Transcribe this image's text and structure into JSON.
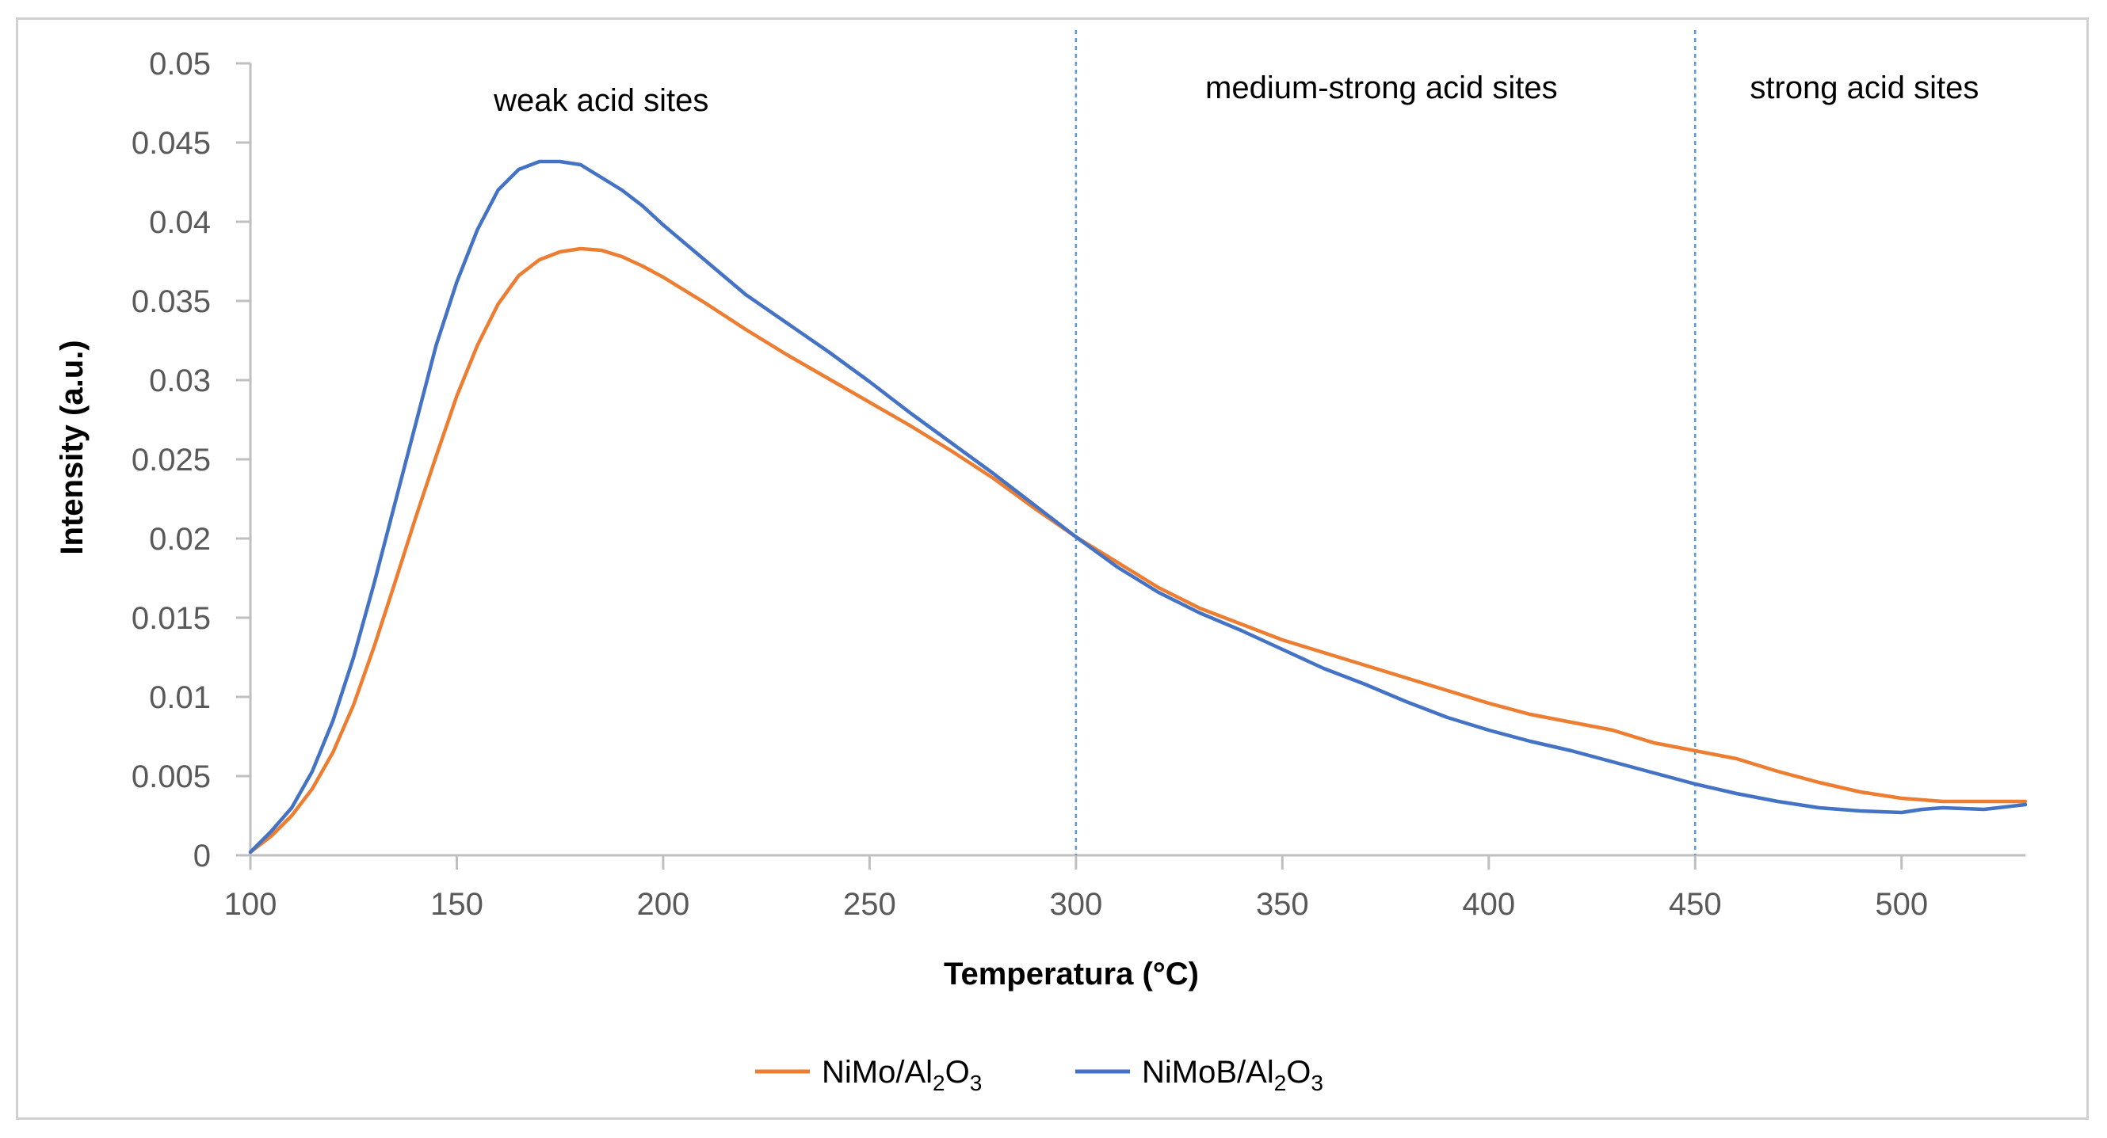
{
  "chart_data": {
    "type": "line",
    "title": "",
    "xlabel": "Temperatura (°C)",
    "ylabel": "Intensity (a.u.)",
    "xlim": [
      100,
      530
    ],
    "ylim": [
      0,
      0.05
    ],
    "x_ticks": [
      100,
      150,
      200,
      250,
      300,
      350,
      400,
      450,
      500
    ],
    "x_tick_labels": [
      "100",
      "150",
      "200",
      "250",
      "300",
      "350",
      "400",
      "450",
      "500"
    ],
    "y_ticks": [
      0,
      0.005,
      0.01,
      0.015,
      0.02,
      0.025,
      0.03,
      0.035,
      0.04,
      0.045,
      0.05
    ],
    "y_tick_labels": [
      "0",
      "0.005",
      "0.01",
      "0.015",
      "0.02",
      "0.025",
      "0.03",
      "0.035",
      "0.04",
      "0.045",
      "0.05"
    ],
    "grid": false,
    "legend_position": "bottom",
    "vertical_lines": [
      300,
      450
    ],
    "region_labels": [
      {
        "text": "weak acid sites",
        "x": 185,
        "y": 0.0477
      },
      {
        "text": "medium-strong acid sites",
        "x": 374,
        "y": 0.0485
      },
      {
        "text": "strong acid sites",
        "x": 491,
        "y": 0.0485
      }
    ],
    "series": [
      {
        "name": "NiMo/Al2O3",
        "legend_parts": {
          "base": "NiMo/Al",
          "sub1": "2",
          "mid": "O",
          "sub2": "3"
        },
        "color": "#ED7D31",
        "x": [
          100,
          105,
          110,
          115,
          120,
          125,
          130,
          135,
          140,
          145,
          150,
          155,
          160,
          165,
          170,
          175,
          180,
          185,
          190,
          195,
          200,
          210,
          220,
          230,
          240,
          250,
          260,
          270,
          280,
          290,
          300,
          310,
          320,
          330,
          340,
          350,
          360,
          370,
          380,
          390,
          400,
          410,
          420,
          430,
          440,
          450,
          460,
          470,
          480,
          490,
          500,
          510,
          520,
          530
        ],
        "y": [
          0.0002,
          0.0012,
          0.0025,
          0.0042,
          0.0065,
          0.0095,
          0.0132,
          0.0172,
          0.0213,
          0.0252,
          0.029,
          0.0322,
          0.0348,
          0.0366,
          0.0376,
          0.0381,
          0.0383,
          0.0382,
          0.0378,
          0.0372,
          0.0365,
          0.0349,
          0.0332,
          0.0316,
          0.0301,
          0.0286,
          0.0271,
          0.0255,
          0.0238,
          0.0219,
          0.0201,
          0.0185,
          0.0169,
          0.0156,
          0.0146,
          0.0136,
          0.0128,
          0.012,
          0.0112,
          0.0104,
          0.0096,
          0.0089,
          0.0084,
          0.0079,
          0.0071,
          0.0066,
          0.0061,
          0.0053,
          0.0046,
          0.004,
          0.0036,
          0.0034,
          0.0034,
          0.0034
        ]
      },
      {
        "name": "NiMoB/Al2O3",
        "legend_parts": {
          "base": "NiMoB/Al",
          "sub1": "2",
          "mid": "O",
          "sub2": "3"
        },
        "color": "#4472C4",
        "x": [
          100,
          105,
          110,
          115,
          120,
          125,
          130,
          135,
          140,
          145,
          150,
          155,
          160,
          165,
          170,
          175,
          180,
          185,
          190,
          195,
          200,
          210,
          220,
          230,
          240,
          250,
          260,
          270,
          280,
          290,
          300,
          310,
          320,
          330,
          340,
          350,
          360,
          370,
          380,
          390,
          400,
          410,
          420,
          430,
          440,
          450,
          460,
          470,
          480,
          490,
          500,
          505,
          510,
          520,
          530
        ],
        "y": [
          0.0002,
          0.0015,
          0.003,
          0.0053,
          0.0085,
          0.0125,
          0.0172,
          0.0222,
          0.0272,
          0.0322,
          0.0362,
          0.0395,
          0.042,
          0.0433,
          0.0438,
          0.0438,
          0.0436,
          0.0428,
          0.042,
          0.041,
          0.0398,
          0.0376,
          0.0354,
          0.0336,
          0.0318,
          0.0299,
          0.0279,
          0.026,
          0.0241,
          0.0221,
          0.0201,
          0.0182,
          0.0166,
          0.0153,
          0.0142,
          0.013,
          0.0118,
          0.0108,
          0.0097,
          0.0087,
          0.0079,
          0.0072,
          0.0066,
          0.0059,
          0.0052,
          0.0045,
          0.0039,
          0.0034,
          0.003,
          0.0028,
          0.0027,
          0.0029,
          0.003,
          0.0029,
          0.0032
        ]
      }
    ]
  }
}
